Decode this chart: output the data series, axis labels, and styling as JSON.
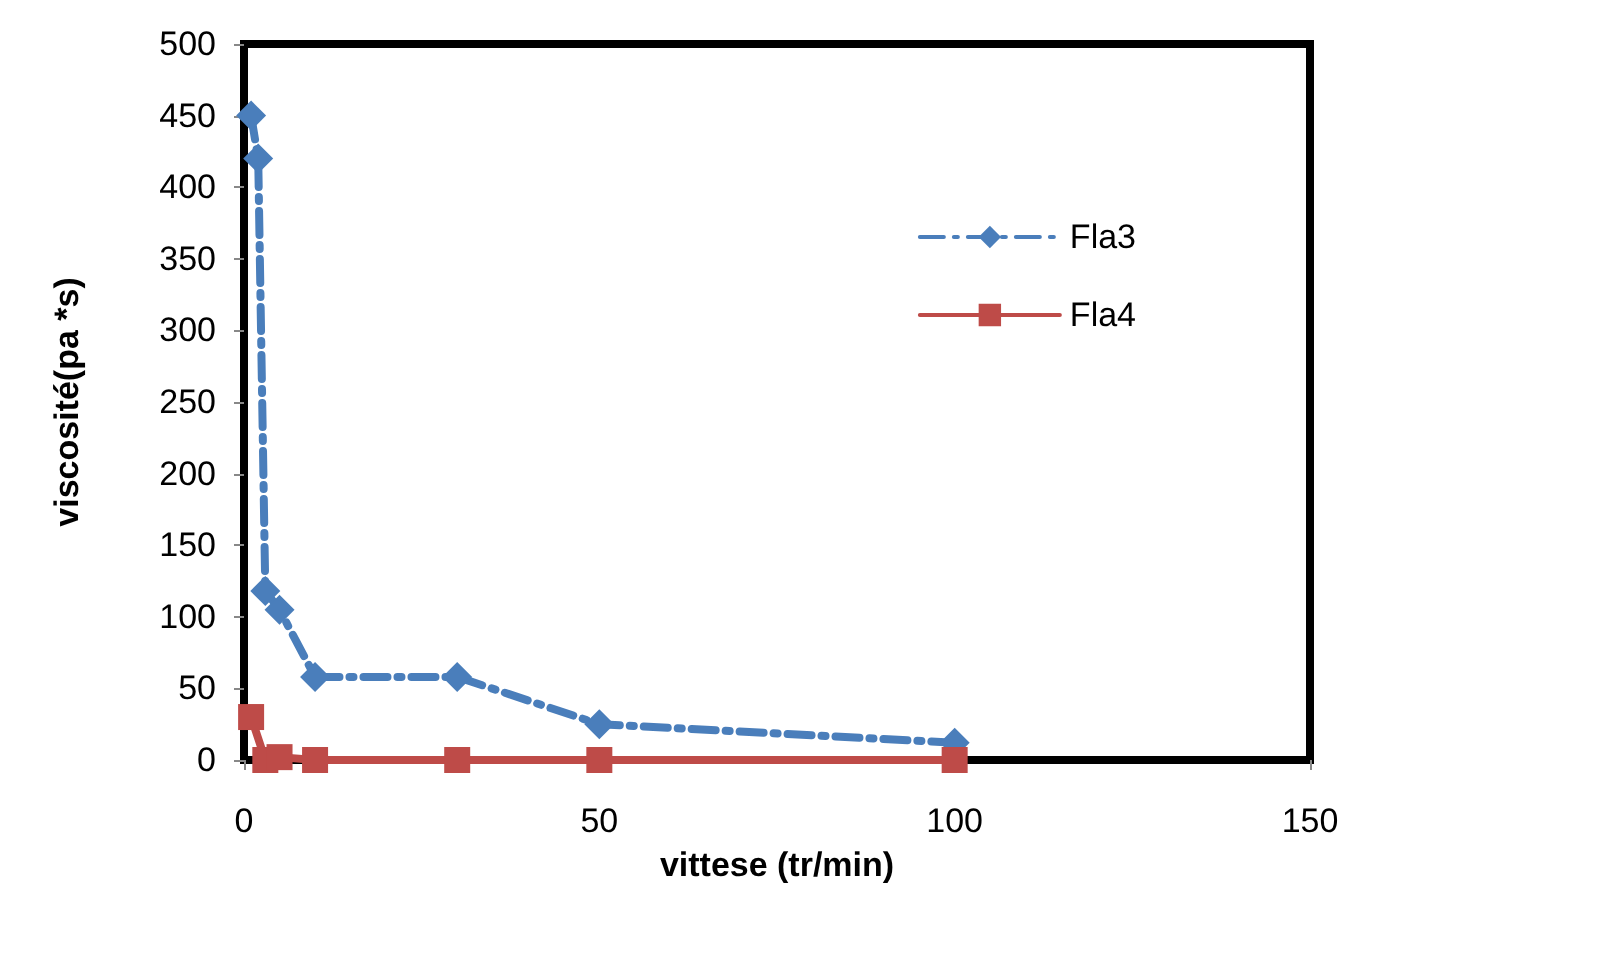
{
  "chart_data": {
    "type": "line",
    "xlabel": "vittese (tr/min)",
    "ylabel": "viscosité(pa *s)",
    "series": [
      {
        "name": "Fla3",
        "color": "#4a7ebb",
        "marker": "diamond",
        "line_style": "dashed",
        "x": [
          1,
          2,
          3,
          5,
          10,
          30,
          50,
          100
        ],
        "values": [
          450,
          420,
          118,
          105,
          58,
          58,
          25,
          12
        ]
      },
      {
        "name": "Fla4",
        "color": "#be4b48",
        "marker": "square",
        "line_style": "solid",
        "x": [
          1,
          3,
          5,
          10,
          30,
          50,
          100
        ],
        "values": [
          30,
          0,
          2,
          0,
          0,
          0,
          0
        ]
      }
    ],
    "xlim": [
      0,
      150
    ],
    "xticks": [
      0,
      50,
      100,
      150
    ],
    "ylim": [
      0,
      500
    ],
    "yticks": [
      0,
      50,
      100,
      150,
      200,
      250,
      300,
      350,
      400,
      450,
      500
    ],
    "grid": false,
    "legend": "right"
  }
}
